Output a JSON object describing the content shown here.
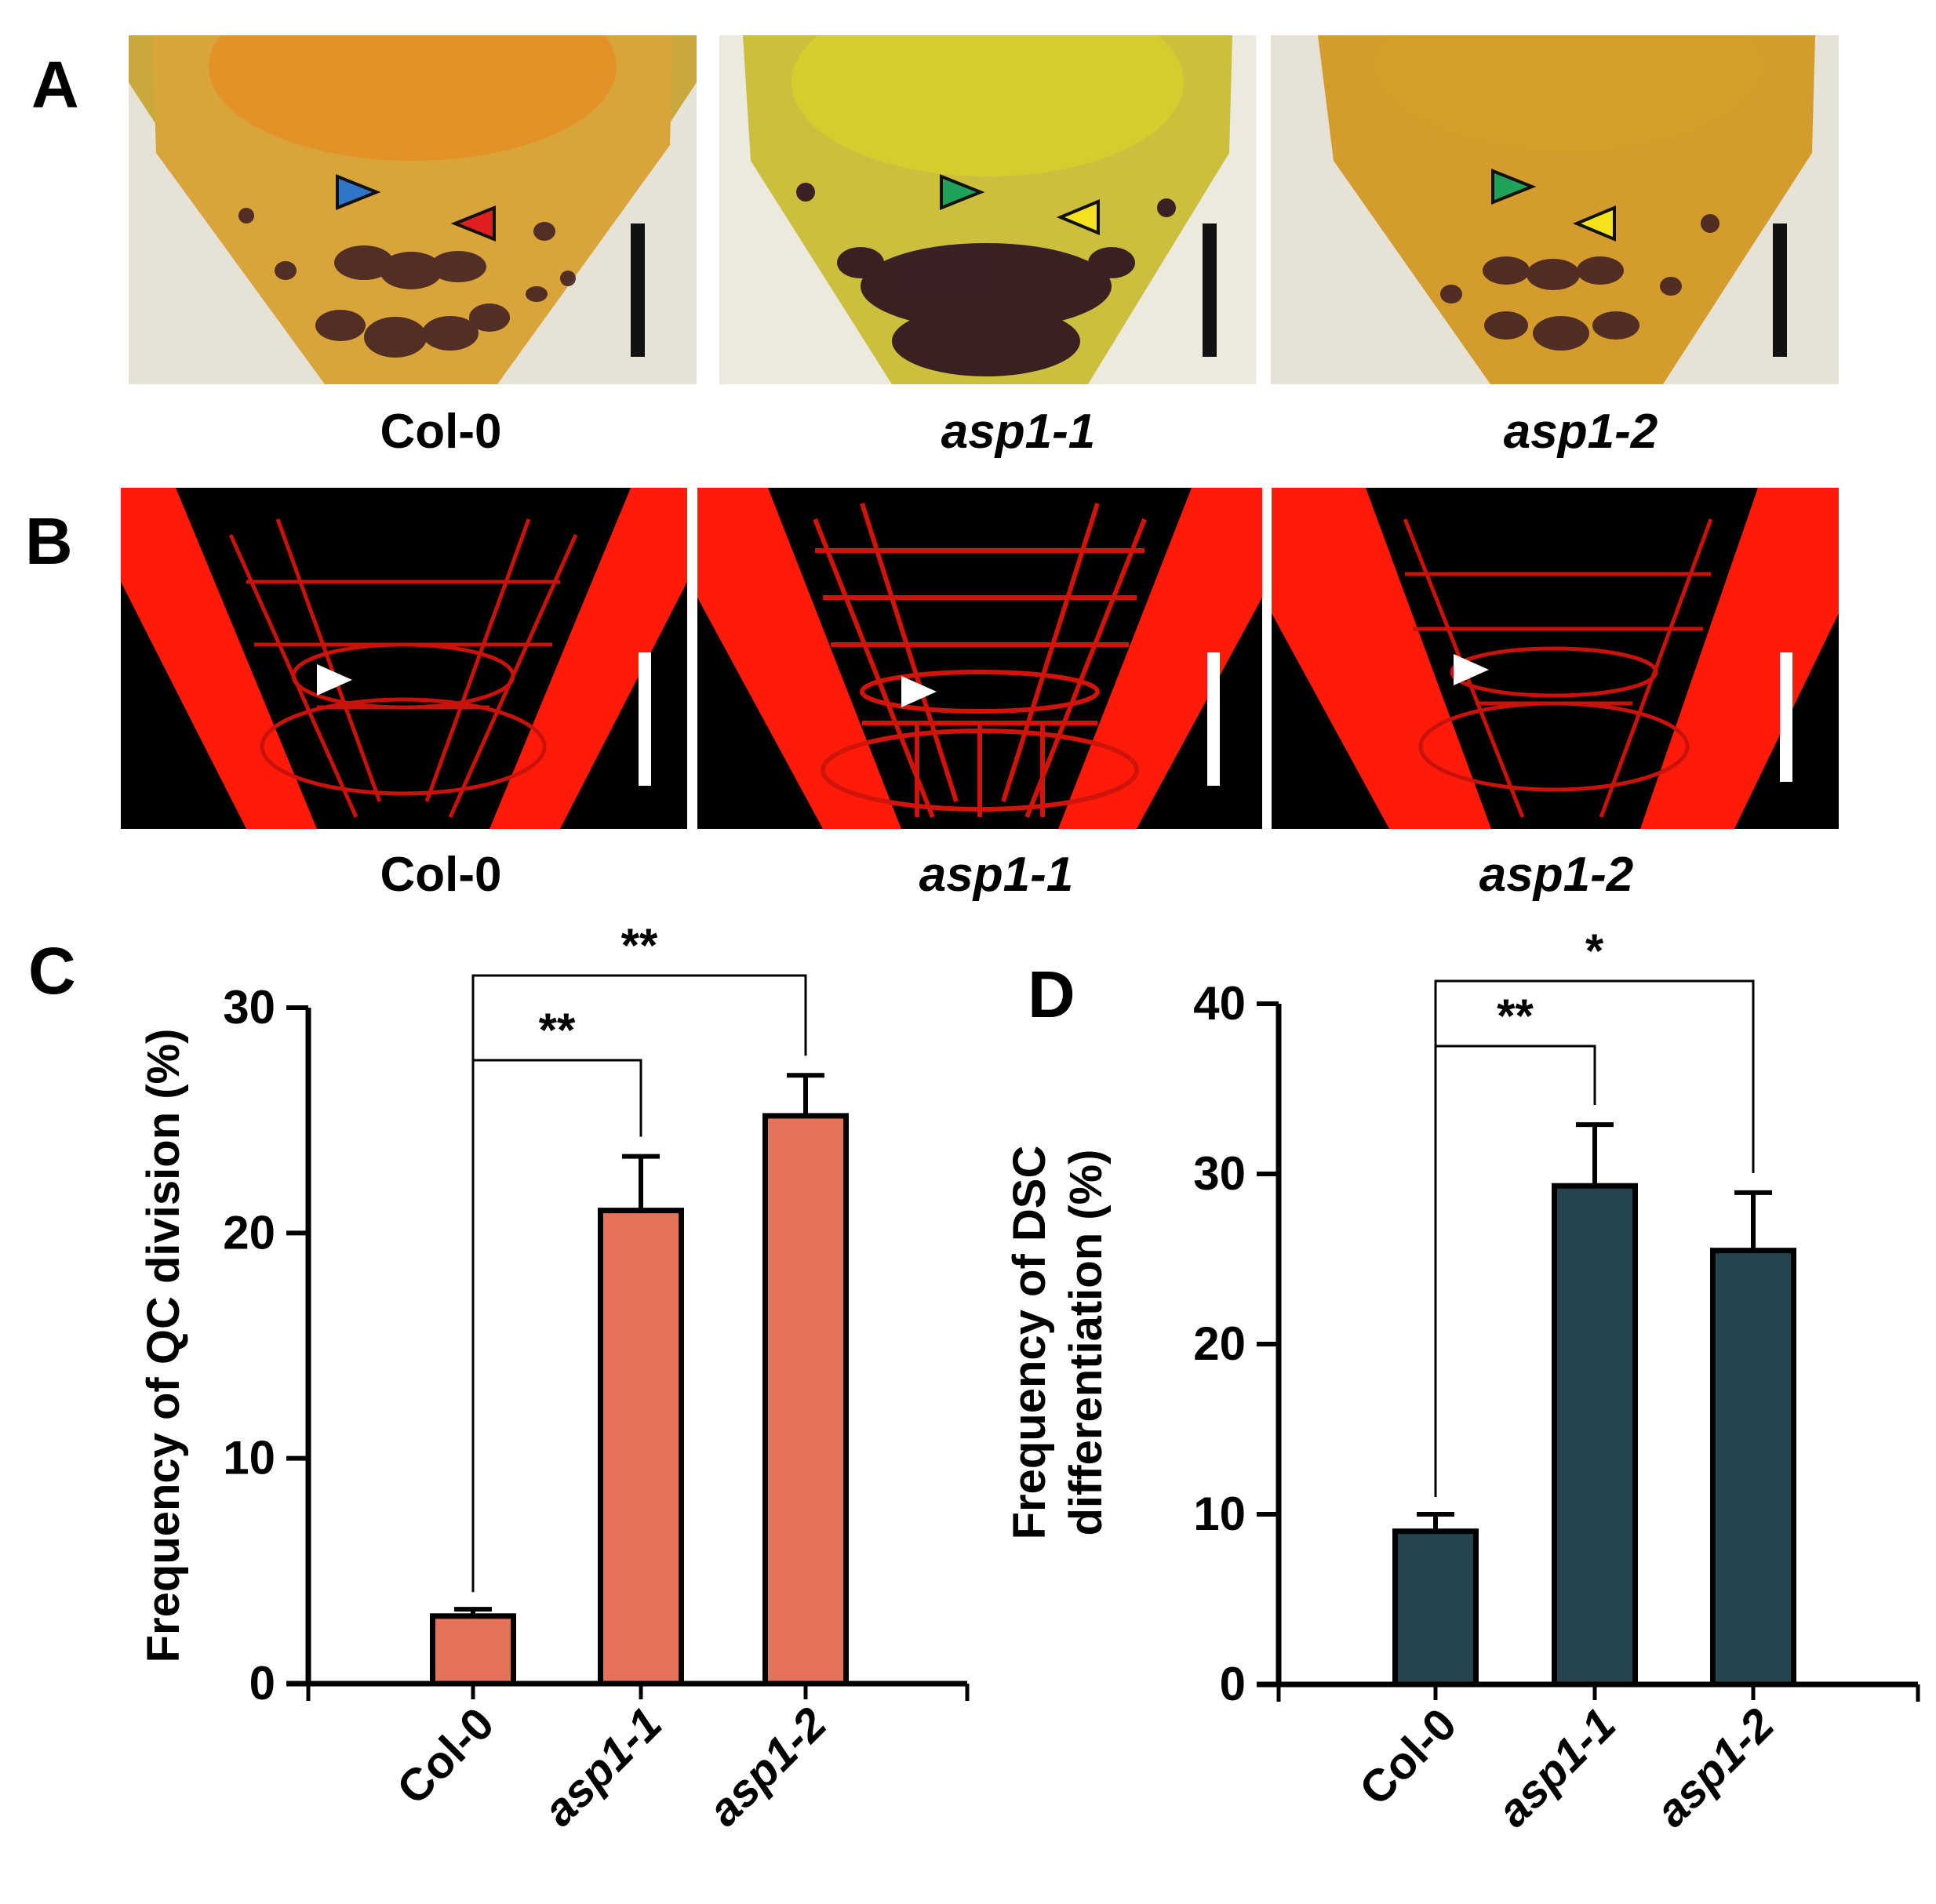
{
  "panels": {
    "A": {
      "letter": "A",
      "captions": [
        "Col-0",
        "asp1-1",
        "asp1-2"
      ],
      "arrowhead_colors": [
        [
          "#2f76c8",
          "#e02020"
        ],
        [
          "#1fa35a",
          "#f4e21a"
        ],
        [
          "#1fa35a",
          "#f4e21a"
        ]
      ],
      "tissue_color": "#d9a53a",
      "stain_color": "#3b1a22"
    },
    "B": {
      "letter": "B",
      "captions": [
        "Col-0",
        "asp1-1",
        "asp1-2"
      ],
      "stain_color": "#ff1a0a",
      "arrowhead_color": "#ffffff"
    },
    "C": {
      "letter": "C"
    },
    "D": {
      "letter": "D"
    }
  },
  "chart_data": [
    {
      "type": "bar",
      "panel": "C",
      "categories": [
        "Col-0",
        "asp1-1",
        "asp1-2"
      ],
      "values": [
        3.0,
        21.0,
        25.2
      ],
      "errors": [
        0.3,
        2.4,
        1.8
      ],
      "ylabel": "Frequency of QC division (%)",
      "xlabel": "",
      "ylim": [
        0,
        30
      ],
      "yticks": [
        0,
        10,
        20,
        30
      ],
      "bar_color": "#e5735a",
      "significance": [
        {
          "from": "Col-0",
          "to": "asp1-1",
          "label": "**"
        },
        {
          "from": "Col-0",
          "to": "asp1-2",
          "label": "**"
        }
      ]
    },
    {
      "type": "bar",
      "panel": "D",
      "categories": [
        "Col-0",
        "asp1-1",
        "asp1-2"
      ],
      "values": [
        9.0,
        29.3,
        25.5
      ],
      "errors": [
        1.0,
        3.6,
        3.4
      ],
      "ylabel_lines": [
        "Frequency of DSC",
        "differentiation (%)"
      ],
      "xlabel": "",
      "ylim": [
        0,
        40
      ],
      "yticks": [
        0,
        10,
        20,
        30,
        40
      ],
      "bar_color": "#26444f",
      "significance": [
        {
          "from": "Col-0",
          "to": "asp1-1",
          "label": "**"
        },
        {
          "from": "Col-0",
          "to": "asp1-2",
          "label": "*"
        }
      ]
    }
  ]
}
